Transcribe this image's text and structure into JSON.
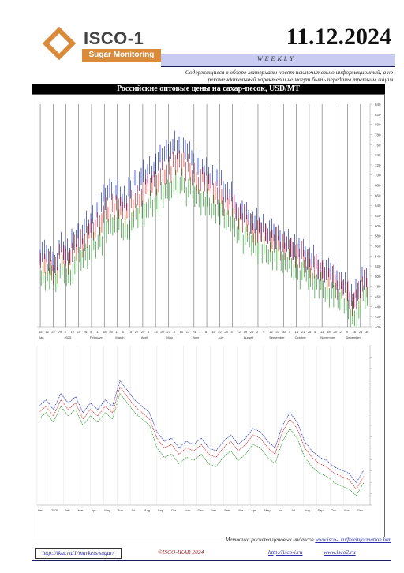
{
  "header": {
    "logo_name": "ISCO-1",
    "logo_sub": "Sugar Monitoring",
    "date": "11.12.2024",
    "period": "WEEKLY",
    "disclaimer": "Содержащиеся в обзоре материалы носят исключительно информационный, а не рекомендательный характер и не могут быть переданы третьим лицам"
  },
  "chart_title": "Российские оптовые цены на сахар-песок, USD/MT",
  "chart_data": [
    {
      "type": "bar",
      "title": "",
      "y_ticks": [
        "840",
        "820",
        "800",
        "780",
        "760",
        "740",
        "720",
        "700",
        "680",
        "660",
        "640",
        "620",
        "600",
        "580",
        "560",
        "540",
        "520",
        "500",
        "480",
        "460",
        "440",
        "420",
        "400"
      ],
      "x_ticks": [
        "15",
        "16",
        "22",
        "29",
        "5",
        "12",
        "19",
        "26",
        "4",
        "11",
        "18",
        "25",
        "1",
        "8",
        "15",
        "22",
        "29",
        "6",
        "13",
        "20",
        "27",
        "3",
        "10",
        "17",
        "24",
        "1",
        "8",
        "15",
        "22",
        "29",
        "5",
        "12",
        "19",
        "26",
        "2",
        "9",
        "16",
        "23",
        "30",
        "7",
        "14",
        "21",
        "28",
        "4",
        "11",
        "18",
        "25",
        "2",
        "9",
        "16",
        "23",
        "30"
      ],
      "month_labels": [
        "Jan",
        "2025",
        "February",
        "March",
        "April",
        "May",
        "June",
        "July",
        "August",
        "September",
        "October",
        "November",
        "December"
      ],
      "ylim": [
        400,
        840
      ],
      "series": [
        {
          "name": "",
          "color": "#1c2db0",
          "values": [
            548,
            540,
            532,
            560,
            552,
            570,
            585,
            600,
            615,
            642,
            660,
            676,
            668,
            656,
            672,
            690,
            700,
            712,
            722,
            738,
            752,
            760,
            770,
            745,
            730,
            720,
            710,
            700,
            690,
            672,
            660,
            640,
            625,
            612,
            605,
            598,
            590,
            582,
            574,
            566,
            560,
            552,
            540,
            532,
            522,
            512,
            505,
            495,
            480,
            462,
            470,
            500
          ]
        },
        {
          "name": "",
          "color": "#d23030",
          "values": [
            530,
            522,
            515,
            540,
            535,
            552,
            568,
            580,
            592,
            610,
            628,
            640,
            636,
            628,
            640,
            655,
            668,
            680,
            690,
            702,
            714,
            722,
            730,
            712,
            700,
            692,
            684,
            674,
            664,
            650,
            640,
            624,
            610,
            598,
            590,
            584,
            578,
            570,
            562,
            555,
            548,
            540,
            528,
            520,
            512,
            502,
            495,
            485,
            470,
            452,
            460,
            490
          ]
        },
        {
          "name": "",
          "color": "#2e9a2e",
          "values": [
            505,
            500,
            492,
            512,
            506,
            520,
            536,
            548,
            560,
            575,
            592,
            604,
            602,
            596,
            606,
            620,
            632,
            642,
            650,
            662,
            672,
            680,
            688,
            672,
            662,
            654,
            646,
            638,
            628,
            614,
            604,
            590,
            578,
            566,
            558,
            552,
            546,
            538,
            530,
            524,
            516,
            508,
            498,
            490,
            482,
            472,
            465,
            456,
            442,
            425,
            432,
            460
          ]
        }
      ]
    },
    {
      "type": "line",
      "title": "",
      "x_ticks": [
        "Dec",
        "2025",
        "Feb",
        "Mar",
        "Apr",
        "May",
        "Jun",
        "Jul",
        "Aug",
        "Sep",
        "Oct",
        "Nov",
        "Dec",
        "Jan",
        "Feb",
        "Mar",
        "Apr",
        "May",
        "Jun",
        "Jul",
        "Aug",
        "Sep",
        "Oct",
        "Nov",
        "Dec"
      ],
      "series": [
        {
          "name": "",
          "color": "#1c2db0",
          "values": [
            0.62,
            0.66,
            0.6,
            0.7,
            0.64,
            0.68,
            0.58,
            0.64,
            0.6,
            0.66,
            0.62,
            0.78,
            0.72,
            0.66,
            0.62,
            0.58,
            0.46,
            0.4,
            0.42,
            0.36,
            0.4,
            0.38,
            0.42,
            0.36,
            0.34,
            0.4,
            0.44,
            0.38,
            0.42,
            0.48,
            0.46,
            0.4,
            0.36,
            0.5,
            0.58,
            0.52,
            0.4,
            0.34,
            0.3,
            0.28,
            0.24,
            0.22,
            0.2,
            0.14,
            0.22
          ]
        },
        {
          "name": "",
          "color": "#d23030",
          "values": [
            0.58,
            0.62,
            0.56,
            0.66,
            0.6,
            0.64,
            0.54,
            0.6,
            0.56,
            0.62,
            0.58,
            0.74,
            0.68,
            0.62,
            0.58,
            0.54,
            0.42,
            0.36,
            0.38,
            0.32,
            0.36,
            0.34,
            0.38,
            0.32,
            0.3,
            0.36,
            0.4,
            0.34,
            0.38,
            0.44,
            0.42,
            0.36,
            0.32,
            0.46,
            0.54,
            0.48,
            0.36,
            0.3,
            0.26,
            0.24,
            0.2,
            0.18,
            0.16,
            0.1,
            0.18
          ]
        },
        {
          "name": "",
          "color": "#2e9a2e",
          "values": [
            0.54,
            0.58,
            0.52,
            0.62,
            0.56,
            0.6,
            0.5,
            0.56,
            0.52,
            0.58,
            0.54,
            0.7,
            0.64,
            0.58,
            0.54,
            0.5,
            0.36,
            0.3,
            0.32,
            0.26,
            0.3,
            0.28,
            0.32,
            0.26,
            0.24,
            0.3,
            0.34,
            0.28,
            0.32,
            0.38,
            0.36,
            0.3,
            0.26,
            0.4,
            0.48,
            0.42,
            0.3,
            0.24,
            0.2,
            0.18,
            0.14,
            0.12,
            0.1,
            0.06,
            0.14
          ]
        }
      ]
    }
  ],
  "footer": {
    "note_prefix": "Методика расчета ценовых индексов",
    "note_link": "www.isco-i.ru/freeinformation.htm",
    "url1": "http://ikar.ru/1/markets/sugar/",
    "copyright": "©ISCO-IKAR 2024",
    "url2": "http://isco-i.ru",
    "url3": "www.isco2.ru"
  }
}
